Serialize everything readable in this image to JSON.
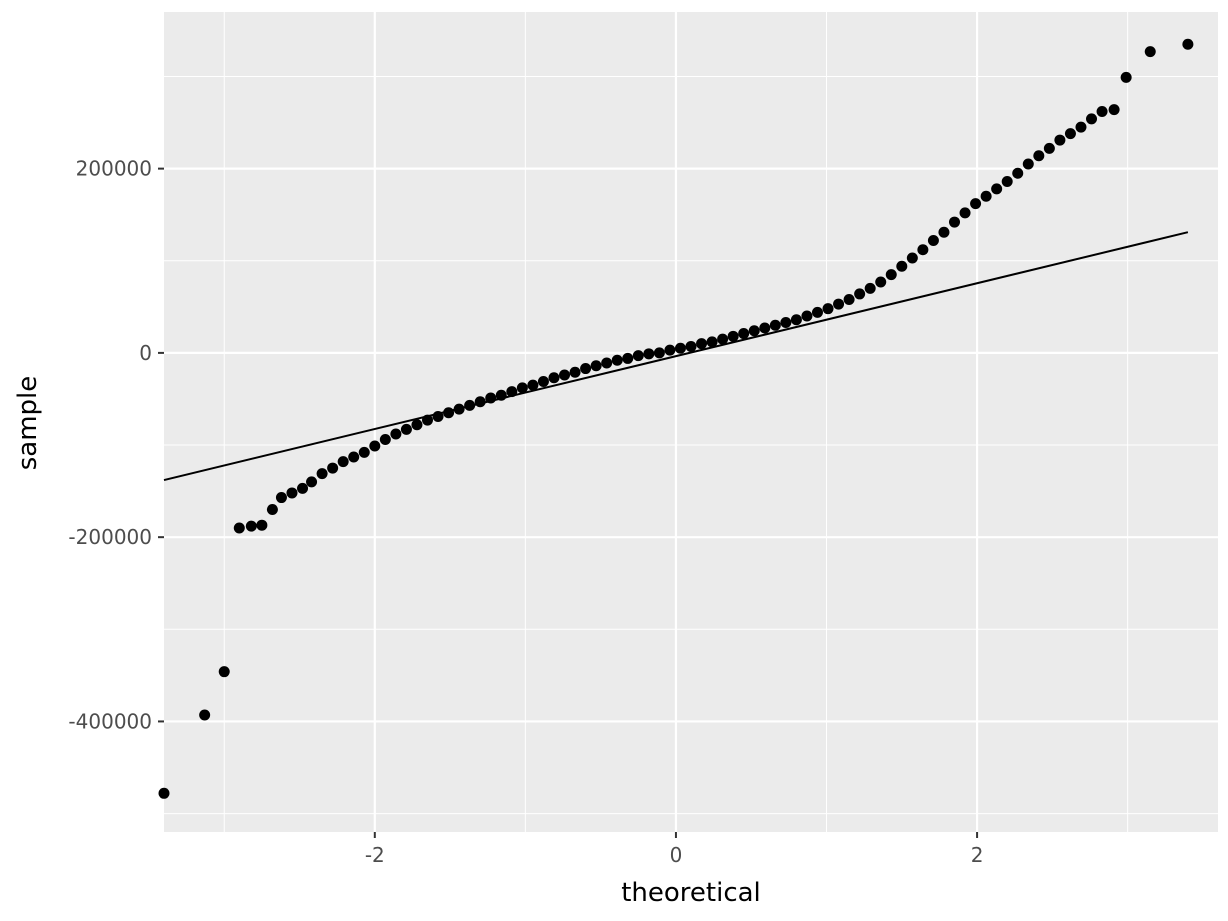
{
  "chart_data": {
    "type": "scatter",
    "xlabel": "theoretical",
    "ylabel": "sample",
    "xlim": [
      -3.4,
      3.6
    ],
    "ylim": [
      -520000,
      370000
    ],
    "x_ticks": [
      -2,
      0,
      2
    ],
    "x_tick_labels": [
      "-2",
      "0",
      "2"
    ],
    "y_ticks": [
      -400000,
      -200000,
      0,
      200000
    ],
    "y_tick_labels": [
      "-400000",
      "-200000",
      "0",
      "200000"
    ],
    "grid": true,
    "background_color": "#ebebeb",
    "grid_color": "#ffffff",
    "point_color": "#000000",
    "reference_line": {
      "x": [
        -3.4,
        3.4
      ],
      "y": [
        -138000,
        131000
      ]
    },
    "points": {
      "x": [
        -3.4,
        -3.13,
        -3.0,
        -2.9,
        -2.82,
        -2.75,
        -2.68,
        -2.62,
        -2.55,
        -2.48,
        -2.42,
        -2.35,
        -2.28,
        -2.21,
        -2.14,
        -2.07,
        -2.0,
        -1.93,
        -1.86,
        -1.79,
        -1.72,
        -1.65,
        -1.58,
        -1.51,
        -1.44,
        -1.37,
        -1.3,
        -1.23,
        -1.16,
        -1.09,
        -1.02,
        -0.95,
        -0.88,
        -0.81,
        -0.74,
        -0.67,
        -0.6,
        -0.53,
        -0.46,
        -0.39,
        -0.32,
        -0.25,
        -0.18,
        -0.11,
        -0.04,
        0.03,
        0.1,
        0.17,
        0.24,
        0.31,
        0.38,
        0.45,
        0.52,
        0.59,
        0.66,
        0.73,
        0.8,
        0.87,
        0.94,
        1.01,
        1.08,
        1.15,
        1.22,
        1.29,
        1.36,
        1.43,
        1.5,
        1.57,
        1.64,
        1.71,
        1.78,
        1.85,
        1.92,
        1.99,
        2.06,
        2.13,
        2.2,
        2.27,
        2.34,
        2.41,
        2.48,
        2.55,
        2.62,
        2.69,
        2.76,
        2.83,
        2.91,
        2.99,
        3.15,
        3.4
      ],
      "y": [
        -478000,
        -393000,
        -346000,
        -190000,
        -188000,
        -187000,
        -170000,
        -157000,
        -152000,
        -147000,
        -140000,
        -131000,
        -125000,
        -118000,
        -113000,
        -108000,
        -101000,
        -94000,
        -88000,
        -83000,
        -78000,
        -73000,
        -69000,
        -65000,
        -61000,
        -57000,
        -53000,
        -49000,
        -46000,
        -42000,
        -38000,
        -35000,
        -31000,
        -27000,
        -24000,
        -21000,
        -17000,
        -14000,
        -11000,
        -8000,
        -6000,
        -3000,
        -1000,
        0,
        3000,
        5000,
        7000,
        10000,
        12000,
        15000,
        18000,
        21000,
        24000,
        27000,
        30000,
        33000,
        36000,
        40000,
        44000,
        48000,
        53000,
        58000,
        64000,
        70000,
        77000,
        85000,
        94000,
        103000,
        112000,
        122000,
        131000,
        142000,
        152000,
        162000,
        170000,
        178000,
        186000,
        195000,
        205000,
        214000,
        222000,
        231000,
        238000,
        245000,
        254000,
        262000,
        264000,
        299000,
        327000,
        335000
      ]
    }
  }
}
